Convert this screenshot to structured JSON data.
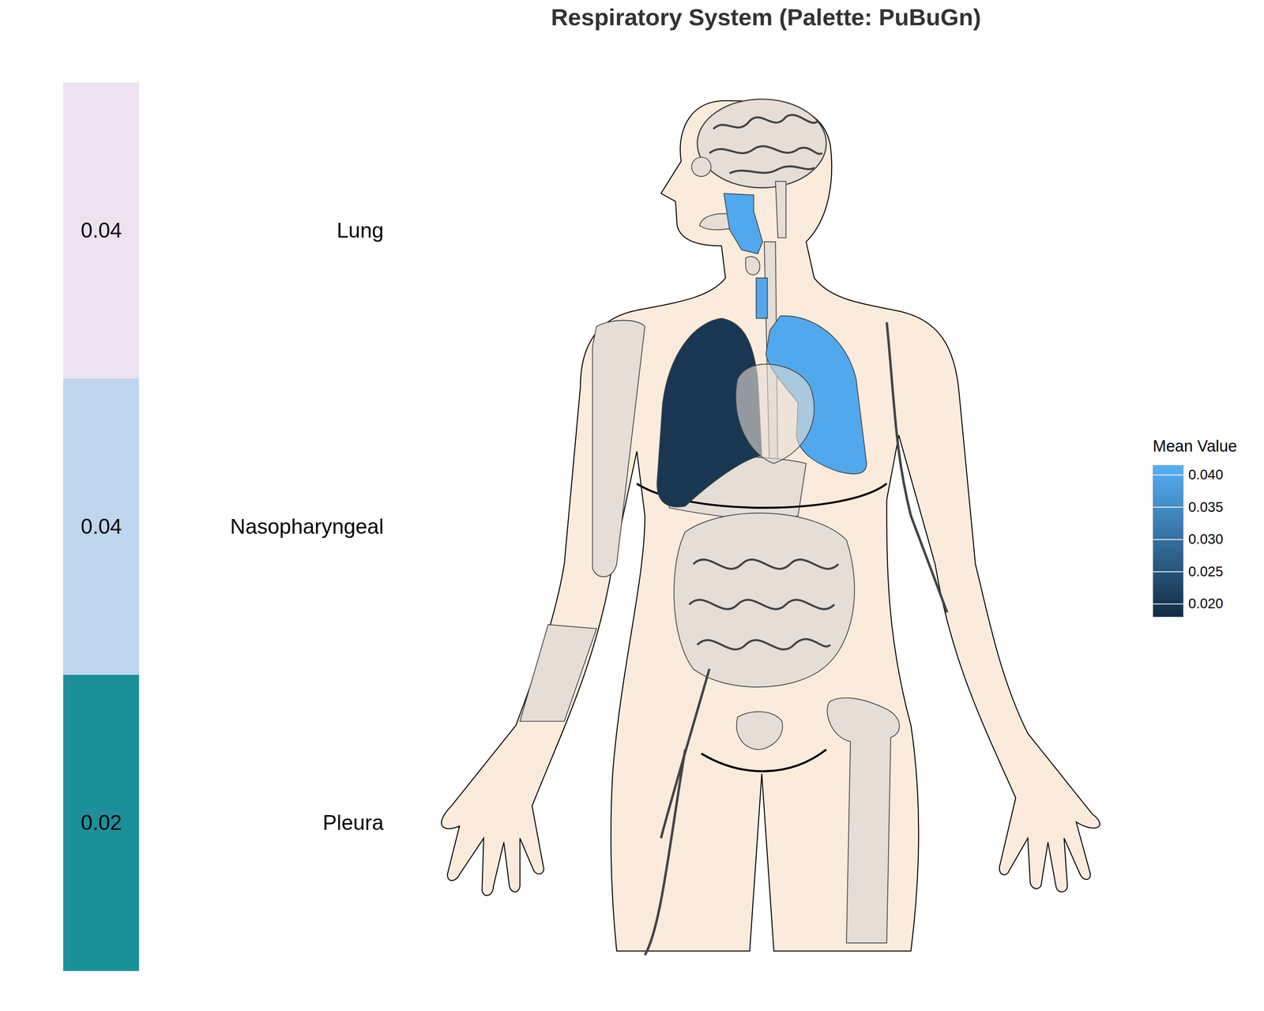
{
  "chart_data": {
    "type": "anatomy",
    "title": "Respiratory System (Palette: PuBuGn)",
    "categories": [
      "Lung",
      "Nasopharyngeal",
      "Pleura"
    ],
    "values": [
      0.04,
      0.04,
      0.02
    ],
    "colors": [
      "#ece2f0",
      "#bfd6ee",
      "#1c9099"
    ],
    "color_scale": {
      "label": "Mean Value",
      "domain": [
        0.018,
        0.0415
      ],
      "ticks": [
        {
          "value": 0.02,
          "label": "0.020"
        },
        {
          "value": 0.025,
          "label": "0.025"
        },
        {
          "value": 0.03,
          "label": "0.030"
        },
        {
          "value": 0.035,
          "label": "0.035"
        },
        {
          "value": 0.04,
          "label": "0.040"
        }
      ],
      "range": [
        "#132B43",
        "#56B1F7"
      ]
    }
  }
}
